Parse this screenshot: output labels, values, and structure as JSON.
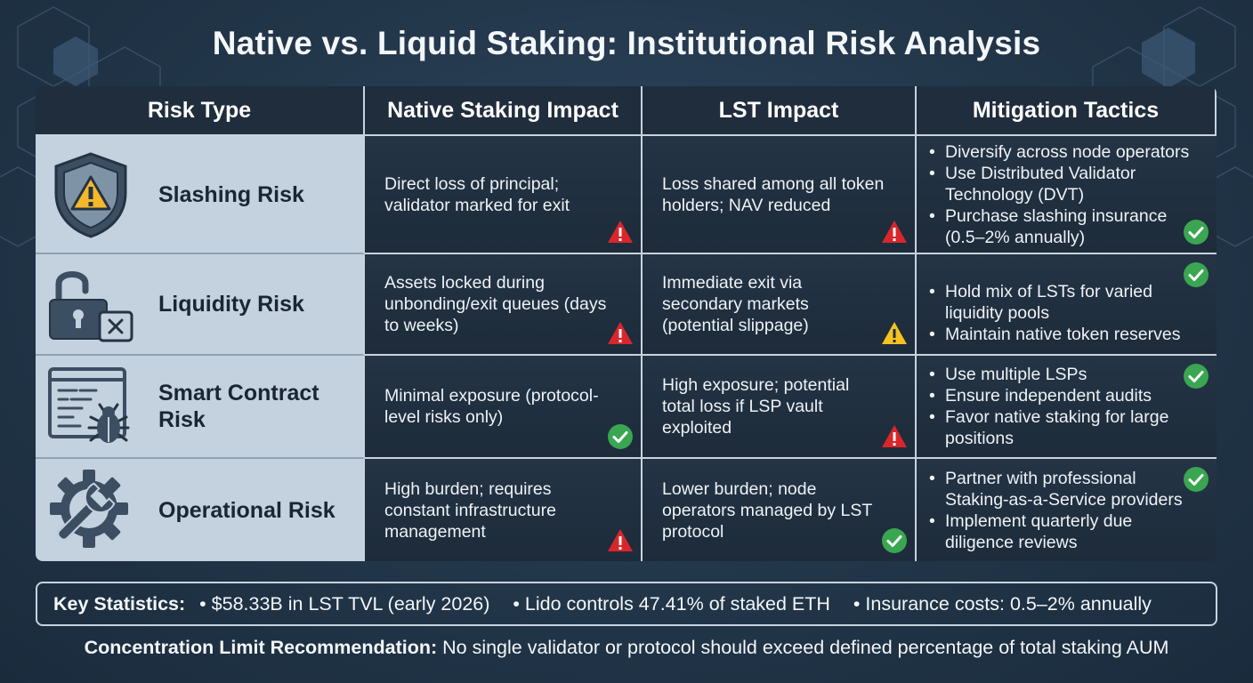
{
  "title": "Native vs. Liquid Staking: Institutional Risk Analysis",
  "table": {
    "headers": [
      "Risk Type",
      "Native Staking Impact",
      "LST Impact",
      "Mitigation Tactics"
    ],
    "rows": [
      {
        "risk": "Slashing Risk",
        "icon": "shield-warning-icon",
        "native": "Direct loss of principal; validator marked for exit",
        "native_status": "danger",
        "lst": "Loss shared among all token holders; NAV reduced",
        "lst_status": "danger",
        "mitigation": [
          "Diversify across node operators",
          "Use Distributed Validator Technology (DVT)",
          "Purchase slashing insurance (0.5–2% annually)"
        ],
        "mitigation_status": "ok"
      },
      {
        "risk": "Liquidity Risk",
        "icon": "unlocked-padlock-icon",
        "native": "Assets locked during unbonding/exit queues (days to weeks)",
        "native_status": "danger",
        "lst": "Immediate exit via secondary markets (potential slippage)",
        "lst_status": "warning",
        "mitigation": [
          "Hold mix of LSTs for varied liquidity pools",
          "Maintain native token reserves"
        ],
        "mitigation_status": "ok"
      },
      {
        "risk": "Smart Contract Risk",
        "icon": "code-bug-icon",
        "native": "Minimal exposure (protocol-level risks only)",
        "native_status": "ok",
        "lst": "High exposure; potential total loss if LSP vault exploited",
        "lst_status": "danger",
        "mitigation": [
          "Use multiple LSPs",
          "Ensure independent audits",
          "Favor native staking for large positions"
        ],
        "mitigation_status": "ok"
      },
      {
        "risk": "Operational Risk",
        "icon": "gear-wrench-icon",
        "native": "High burden; requires constant infrastructure management",
        "native_status": "danger",
        "lst": "Lower burden; node operators managed by LST protocol",
        "lst_status": "ok",
        "mitigation": [
          "Partner with professional Staking-as-a-Service providers",
          "Implement quarterly due diligence reviews"
        ],
        "mitigation_status": "ok"
      }
    ]
  },
  "stats": {
    "label": "Key Statistics:",
    "items": [
      "• $58.33B in LST TVL (early 2026)",
      "• Lido controls 47.41% of staked ETH",
      "• Insurance costs: 0.5–2% annually"
    ]
  },
  "footer": {
    "label": "Concentration Limit Recommendation:",
    "text": " No single validator or protocol should exceed defined percentage of total staking AUM"
  },
  "colors": {
    "danger": "#d9262b",
    "warning": "#f5c220",
    "ok": "#3aa651",
    "header_bg": "#1f2d3c",
    "risk_bg": "#c4d1de",
    "page_bg": "#223649"
  }
}
